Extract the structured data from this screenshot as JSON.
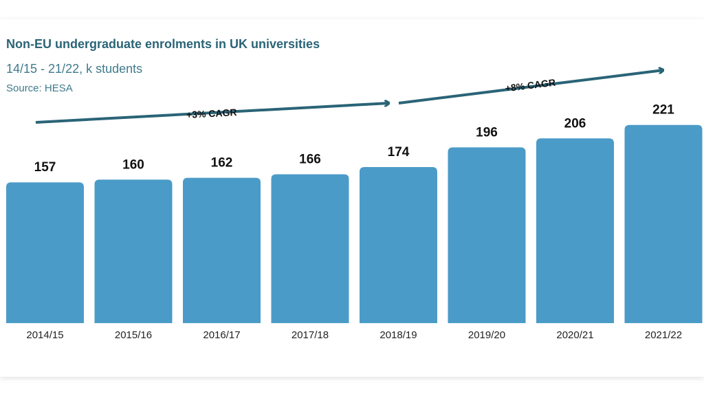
{
  "chart_data": {
    "type": "bar",
    "title": "Non-EU undergraduate enrolments in UK universities",
    "subtitle": "14/15 - 21/22, k students",
    "source": "Source: HESA",
    "categories": [
      "2014/15",
      "2015/16",
      "2016/17",
      "2017/18",
      "2018/19",
      "2019/20",
      "2020/21",
      "2021/22"
    ],
    "values": [
      157,
      160,
      162,
      166,
      174,
      196,
      206,
      221
    ],
    "trends": [
      {
        "label": "+3% CAGR",
        "from": "2014/15",
        "to": "2018/19"
      },
      {
        "label": "+8% CAGR",
        "from": "2018/19",
        "to": "2021/22"
      }
    ],
    "grid": false,
    "legend": "none"
  },
  "colors": {
    "bar": "#4b9bc8",
    "arrow": "#2a6477",
    "title": "#2a6477"
  }
}
